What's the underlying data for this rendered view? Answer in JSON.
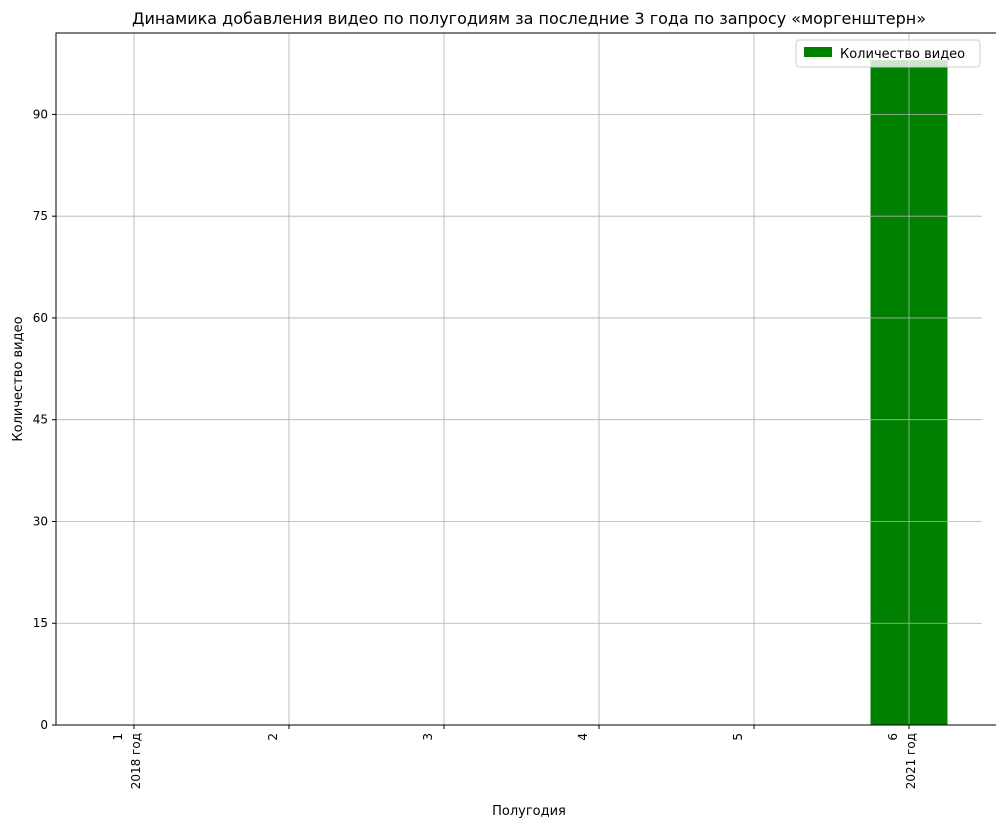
{
  "chart_data": {
    "type": "bar",
    "title": "Динамика добавления видео по полугодиям за последние 3 года по запросу «моргенштерн»",
    "xlabel": "Полугодия",
    "ylabel": "Количество видео",
    "categories": [
      "1",
      "2",
      "3",
      "4",
      "5",
      "6"
    ],
    "category_sublabels": [
      "2018 год",
      "",
      "",
      "",
      "",
      "2021 год"
    ],
    "series": [
      {
        "name": "Количество видео",
        "values": [
          0,
          0,
          0,
          0,
          0,
          98
        ]
      }
    ],
    "ylim": [
      0,
      102
    ],
    "yticks": [
      0,
      15,
      30,
      45,
      60,
      75,
      90
    ],
    "grid": true,
    "legend_position": "top-right",
    "colors": {
      "bar": "#008000",
      "grid": "#b0b0b0",
      "axis": "#000000"
    }
  }
}
